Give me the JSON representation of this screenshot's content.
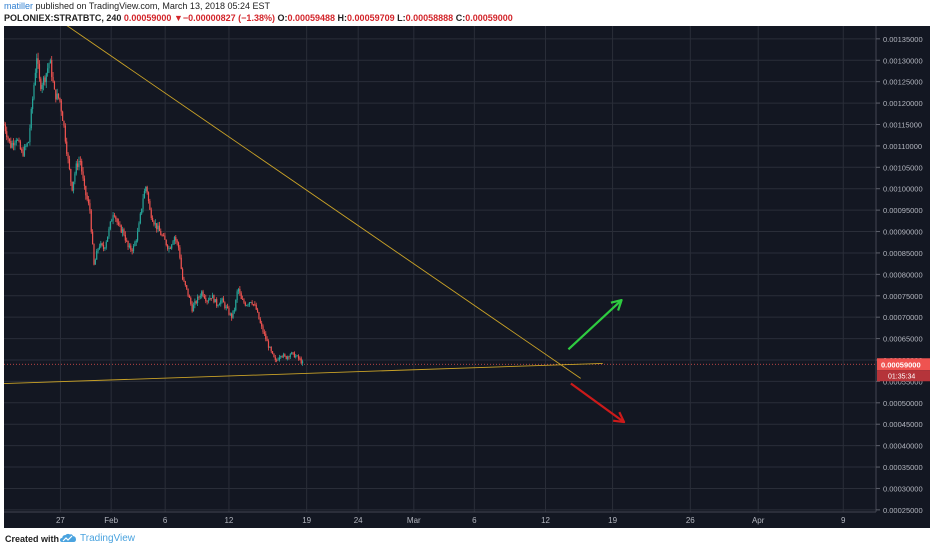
{
  "header": {
    "author": "matiller",
    "published_text": " published on TradingView.com, March 13, 2018 05:24 EST",
    "symbol": "POLONIEX:STRATBTC, 240",
    "last_price": "0.00059000",
    "change_arrow": "▼",
    "change": "−0.00000827 (−1.38%)",
    "open_label": "O:",
    "open": "0.00059488",
    "high_label": "H:",
    "high": "0.00059709",
    "low_label": "L:",
    "low": "0.00058888",
    "close_label": "C:",
    "close": "0.00059000"
  },
  "footer": {
    "created_with": "Created with",
    "brand": "TradingView",
    "logo_icon": "tradingview-cloud-logo"
  },
  "colors": {
    "background": "#131722",
    "grid": "#2a2e39",
    "up": "#26a69a",
    "down": "#ef5350",
    "trendline": "#c9a227",
    "arrow_up": "#2ecc40",
    "arrow_down": "#cc1a1a",
    "price_badge": "#ef5350",
    "axis_text": "#b2b5be"
  },
  "chart_data": {
    "type": "candlestick",
    "symbol": "POLONIEX:STRATBTC",
    "interval": "240",
    "x_tick_labels": [
      "27",
      "Feb",
      "6",
      "12",
      "19",
      "24",
      "Mar",
      "6",
      "12",
      "19",
      "26",
      "Apr",
      "9"
    ],
    "y_tick_labels": [
      "0.00025000",
      "0.00030000",
      "0.00035000",
      "0.00040000",
      "0.00045000",
      "0.00050000",
      "0.00055000",
      "0.00060000",
      "0.00065000",
      "0.00070000",
      "0.00075000",
      "0.00080000",
      "0.00085000",
      "0.00090000",
      "0.00095000",
      "0.00100000",
      "0.00105000",
      "0.00110000",
      "0.00115000",
      "0.00120000",
      "0.00125000",
      "0.00130000",
      "0.00135000"
    ],
    "ylim": [
      0.000245,
      0.00138
    ],
    "grid": true,
    "current_price_label": "0.00059000",
    "countdown_label": "01:35:34",
    "price_path": [
      {
        "x": 0.0,
        "y": 0.00115
      },
      {
        "x": 0.8,
        "y": 0.0011
      },
      {
        "x": 1.5,
        "y": 0.00112
      },
      {
        "x": 2.2,
        "y": 0.00108
      },
      {
        "x": 3.0,
        "y": 0.00111
      },
      {
        "x": 3.6,
        "y": 0.00123
      },
      {
        "x": 4.0,
        "y": 0.00131
      },
      {
        "x": 4.4,
        "y": 0.00124
      },
      {
        "x": 5.0,
        "y": 0.00126
      },
      {
        "x": 5.6,
        "y": 0.0013
      },
      {
        "x": 6.2,
        "y": 0.00122
      },
      {
        "x": 6.8,
        "y": 0.00121
      },
      {
        "x": 7.3,
        "y": 0.00115
      },
      {
        "x": 7.8,
        "y": 0.00107
      },
      {
        "x": 8.3,
        "y": 0.001
      },
      {
        "x": 8.8,
        "y": 0.00105
      },
      {
        "x": 9.3,
        "y": 0.00107
      },
      {
        "x": 9.8,
        "y": 0.001
      },
      {
        "x": 10.5,
        "y": 0.00095
      },
      {
        "x": 11.0,
        "y": 0.00082
      },
      {
        "x": 11.6,
        "y": 0.00087
      },
      {
        "x": 12.2,
        "y": 0.00086
      },
      {
        "x": 12.8,
        "y": 0.0009
      },
      {
        "x": 13.4,
        "y": 0.00095
      },
      {
        "x": 14.0,
        "y": 0.00091
      },
      {
        "x": 14.6,
        "y": 0.0009
      },
      {
        "x": 15.2,
        "y": 0.00086
      },
      {
        "x": 15.8,
        "y": 0.00086
      },
      {
        "x": 16.4,
        "y": 0.0009
      },
      {
        "x": 17.0,
        "y": 0.00098
      },
      {
        "x": 17.4,
        "y": 0.00101
      },
      {
        "x": 17.8,
        "y": 0.00095
      },
      {
        "x": 18.4,
        "y": 0.00092
      },
      {
        "x": 19.0,
        "y": 0.0009
      },
      {
        "x": 19.6,
        "y": 0.00088
      },
      {
        "x": 20.2,
        "y": 0.00086
      },
      {
        "x": 20.8,
        "y": 0.00089
      },
      {
        "x": 21.4,
        "y": 0.00086
      },
      {
        "x": 21.8,
        "y": 0.00079
      },
      {
        "x": 22.4,
        "y": 0.00076
      },
      {
        "x": 23.0,
        "y": 0.00072
      },
      {
        "x": 23.6,
        "y": 0.00074
      },
      {
        "x": 24.2,
        "y": 0.00076
      },
      {
        "x": 24.8,
        "y": 0.00074
      },
      {
        "x": 25.4,
        "y": 0.00075
      },
      {
        "x": 26.0,
        "y": 0.00073
      },
      {
        "x": 26.6,
        "y": 0.00074
      },
      {
        "x": 27.2,
        "y": 0.00072
      },
      {
        "x": 27.8,
        "y": 0.0007
      },
      {
        "x": 28.2,
        "y": 0.00072
      },
      {
        "x": 28.6,
        "y": 0.00077
      },
      {
        "x": 29.0,
        "y": 0.00074
      },
      {
        "x": 29.6,
        "y": 0.00073
      },
      {
        "x": 30.2,
        "y": 0.00074
      },
      {
        "x": 30.8,
        "y": 0.00072
      },
      {
        "x": 31.4,
        "y": 0.00068
      },
      {
        "x": 32.0,
        "y": 0.00065
      },
      {
        "x": 32.6,
        "y": 0.00062
      },
      {
        "x": 33.2,
        "y": 0.000595
      },
      {
        "x": 33.8,
        "y": 0.000615
      },
      {
        "x": 34.4,
        "y": 0.000605
      },
      {
        "x": 35.0,
        "y": 0.000615
      },
      {
        "x": 35.6,
        "y": 0.00061
      },
      {
        "x": 36.2,
        "y": 0.0006
      },
      {
        "x": 36.6,
        "y": 0.00059
      }
    ]
  }
}
